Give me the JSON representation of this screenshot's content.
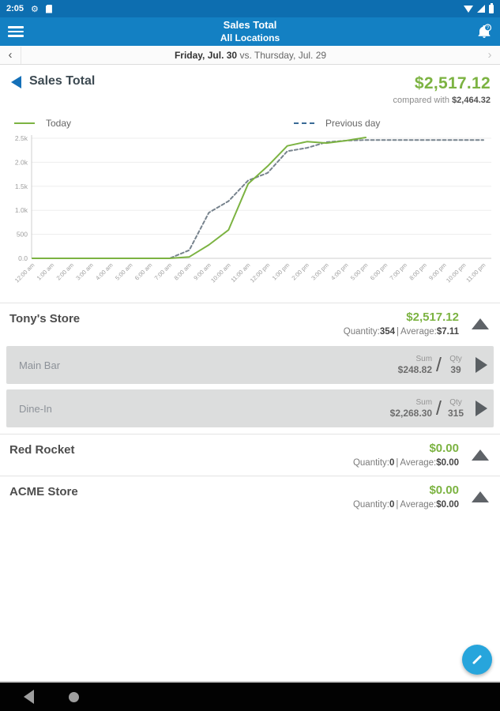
{
  "status_bar": {
    "time": "2:05"
  },
  "app_bar": {
    "title": "Sales Total",
    "subtitle": "All Locations"
  },
  "date_bar": {
    "selected_date": "Friday, Jul. 30",
    "vs": "vs.",
    "comparison_date": "Thursday, Jul. 29"
  },
  "icons": {
    "prev": "‹",
    "next": "›",
    "slash": "/",
    "gear": "⚙"
  },
  "summary": {
    "title": "Sales Total",
    "total": "$2,517.12",
    "compared_prefix": "compared with",
    "compared_value": "$2,464.32"
  },
  "legend": {
    "today": "Today",
    "previous": "Previous day"
  },
  "chart_data": {
    "type": "line",
    "x": [
      "12:00 am",
      "1:00 am",
      "2:00 am",
      "3:00 am",
      "4:00 am",
      "5:00 am",
      "6:00 am",
      "7:00 am",
      "8:00 am",
      "9:00 am",
      "10:00 am",
      "11:00 am",
      "12:00 pm",
      "1:00 pm",
      "2:00 pm",
      "3:00 pm",
      "4:00 pm",
      "5:00 pm",
      "6:00 pm",
      "7:00 pm",
      "8:00 pm",
      "9:00 pm",
      "10:00 pm",
      "11:00 pm"
    ],
    "ylim": [
      0,
      2500
    ],
    "grid": true,
    "legend_position": "top",
    "y_ticks": [
      {
        "label": "2.5k",
        "value": 2500
      },
      {
        "label": "2.0k",
        "value": 2000
      },
      {
        "label": "1.5k",
        "value": 1500
      },
      {
        "label": "1.0k",
        "value": 1000
      },
      {
        "label": "500",
        "value": 500
      },
      {
        "label": "0.0",
        "value": 0
      }
    ],
    "series": [
      {
        "name": "Previous day",
        "color": "#77838d",
        "dash": "4,3",
        "values": [
          0,
          0,
          0,
          0,
          0,
          0,
          0,
          0,
          170,
          950,
          1190,
          1620,
          1780,
          2230,
          2300,
          2420,
          2450,
          2464,
          2464,
          2464,
          2464,
          2464,
          2464,
          2464
        ]
      },
      {
        "name": "Today",
        "color": "#7cb342",
        "dash": null,
        "values": [
          0,
          0,
          0,
          0,
          0,
          0,
          0,
          0,
          30,
          280,
          590,
          1550,
          1920,
          2340,
          2430,
          2400,
          2450,
          2517
        ]
      }
    ]
  },
  "labels": {
    "quantity": "Quantity:",
    "average": "Average:",
    "separator": "|",
    "sum": "Sum",
    "qty": "Qty"
  },
  "stores": [
    {
      "name": "Tony's Store",
      "total": "$2,517.12",
      "quantity": "354",
      "average": "$7.11"
    },
    {
      "name": "Red Rocket",
      "total": "$0.00",
      "quantity": "0",
      "average": "$0.00"
    },
    {
      "name": "ACME Store",
      "total": "$0.00",
      "quantity": "0",
      "average": "$0.00"
    }
  ],
  "tony_subrows": [
    {
      "label": "Main Bar",
      "sum": "$248.82",
      "qty": "39"
    },
    {
      "label": "Dine-In",
      "sum": "$2,268.30",
      "qty": "315"
    }
  ],
  "colors": {
    "header_blue": "#1380c3",
    "status_blue": "#0d6eb0",
    "accent_green": "#7cb342",
    "fab_blue": "#27a5dc",
    "previous_legend": "#3a6b96",
    "previous_line": "#77838d"
  }
}
